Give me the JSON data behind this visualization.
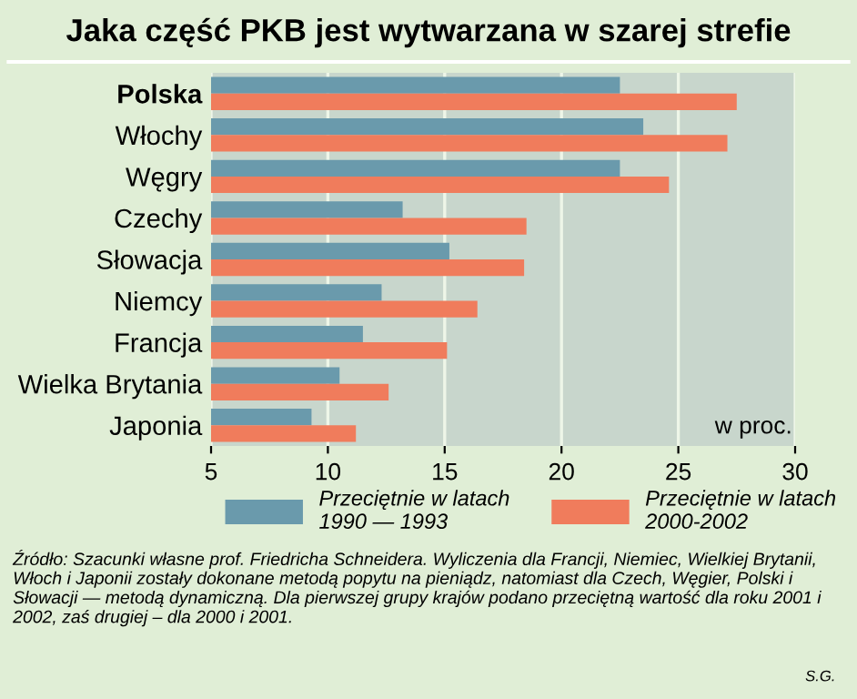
{
  "chart_data": {
    "type": "bar",
    "orientation": "horizontal",
    "title": "Jaka część PKB jest wytwarzana w szarej strefie",
    "categories": [
      "Polska",
      "Włochy",
      "Węgry",
      "Czechy",
      "Słowacja",
      "Niemcy",
      "Francja",
      "Wielka Brytania",
      "Japonia"
    ],
    "series": [
      {
        "name": "Przeciętnie w latach\n1990 — 1993",
        "color": "#6a9aac",
        "values": [
          22.5,
          23.5,
          22.5,
          13.2,
          15.2,
          12.3,
          11.5,
          10.5,
          9.3
        ]
      },
      {
        "name": "Przeciętnie w latach\n2000-2002",
        "color": "#f07c5c",
        "values": [
          27.5,
          27.1,
          24.6,
          18.5,
          18.4,
          16.4,
          15.1,
          12.6,
          11.2
        ]
      }
    ],
    "xlim": [
      5,
      30
    ],
    "xticks": [
      5,
      10,
      15,
      20,
      25,
      30
    ],
    "grid": "x",
    "legend": "bottom",
    "annotations": [
      "w proc.",
      "Źródło: Szacunki własne prof. Friedricha Schneidera. Wyliczenia dla Francji, Niemiec, Wielkiej Brytanii, Włoch i Japonii zostały dokonane metodą popytu na pieniądz, natomiast dla Czech, Węgier, Polski i Słowacji — metodą dynamiczną. Dla pierwszej grupy krajów podano przeciętną wartość dla roku 2001 i 2002, zaś drugiej – dla 2000 i 2001.",
      "S.G."
    ]
  }
}
